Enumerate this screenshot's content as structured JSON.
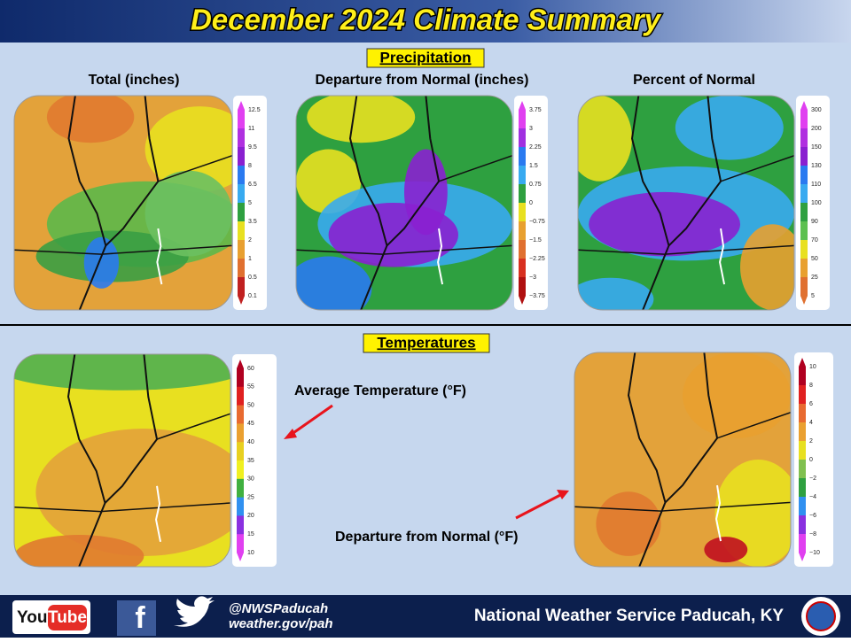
{
  "header": {
    "title": "December 2024 Climate Summary"
  },
  "precipitation": {
    "heading": "Precipitation",
    "panels": [
      {
        "title": "Total (inches)",
        "legend": [
          "12.5",
          "11",
          "9.5",
          "8",
          "6.5",
          "5",
          "3.5",
          "2",
          "1",
          "0.5",
          "0.1"
        ]
      },
      {
        "title": "Departure from Normal (inches)",
        "legend": [
          "3.75",
          "3",
          "2.25",
          "1.5",
          "0.75",
          "0",
          "−0.75",
          "−1.5",
          "−2.25",
          "−3",
          "−3.75"
        ]
      },
      {
        "title": "Percent of Normal",
        "legend": [
          "300",
          "200",
          "150",
          "130",
          "110",
          "100",
          "90",
          "70",
          "50",
          "25",
          "5"
        ]
      }
    ]
  },
  "temperatures": {
    "heading": "Temperatures",
    "panels": [
      {
        "annotation": "Average Temperature (°F)",
        "legend": [
          "60",
          "55",
          "50",
          "45",
          "40",
          "35",
          "30",
          "25",
          "20",
          "15",
          "10"
        ]
      },
      {
        "annotation": "Departure from Normal (°F)",
        "legend": [
          "10",
          "8",
          "6",
          "4",
          "2",
          "0",
          "−2",
          "−4",
          "−6",
          "−8",
          "−10"
        ]
      }
    ]
  },
  "footer": {
    "youtube": [
      "You",
      "Tube"
    ],
    "facebook": "f",
    "handle": "@NWSPaducah",
    "website": "weather.gov/pah",
    "office": "National Weather Service Paducah, KY"
  }
}
